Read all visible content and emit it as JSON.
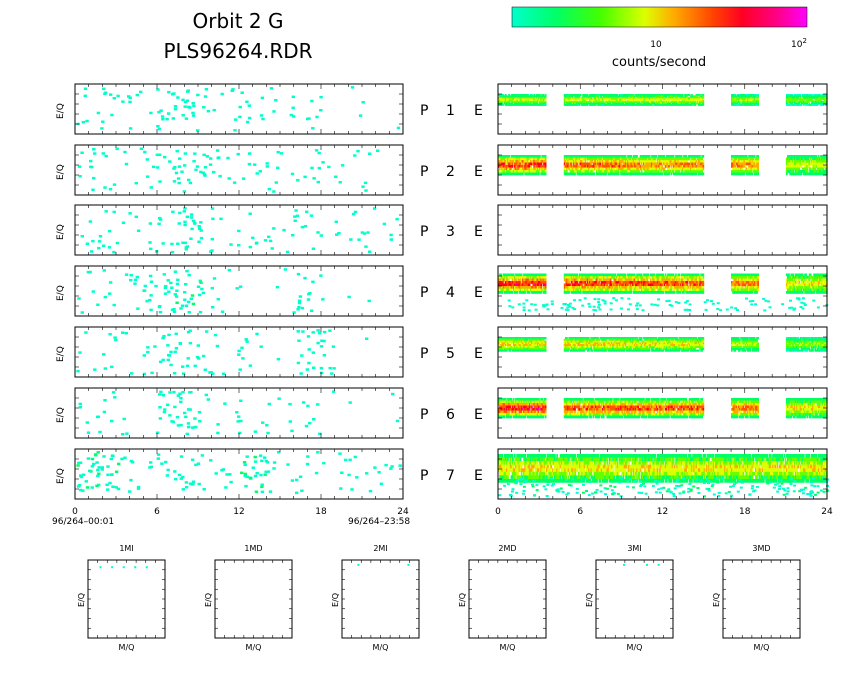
{
  "header": {
    "title_line1": "Orbit 2 G",
    "title_line2": "PLS96264.RDR"
  },
  "colorbar": {
    "label": "counts/second",
    "tick_10": "10",
    "tick_100": "10",
    "tick_100_exp": "2",
    "colors": [
      "#00ffcc",
      "#00ff66",
      "#66ff00",
      "#ddff00",
      "#ffaa00",
      "#ff5500",
      "#ff0022",
      "#ff00aa",
      "#ff00ff"
    ]
  },
  "left_panels": {
    "ylabel": "E/Q",
    "xticks": [
      "0",
      "6",
      "12",
      "18",
      "24"
    ],
    "start_label": "96/264–00:01",
    "end_label": "96/264–23:58"
  },
  "right_panels": {
    "xticks": [
      "0",
      "6",
      "12",
      "18",
      "24"
    ]
  },
  "row_labels": [
    {
      "p": "P",
      "n": "1",
      "e": "E"
    },
    {
      "p": "P",
      "n": "2",
      "e": "E"
    },
    {
      "p": "P",
      "n": "3",
      "e": "E"
    },
    {
      "p": "P",
      "n": "4",
      "e": "E"
    },
    {
      "p": "P",
      "n": "5",
      "e": "E"
    },
    {
      "p": "P",
      "n": "6",
      "e": "E"
    },
    {
      "p": "P",
      "n": "7",
      "e": "E"
    }
  ],
  "small_panels": {
    "ylabel": "E/Q",
    "xlabel": "M/Q",
    "titles": [
      "1MI",
      "1MD",
      "2MI",
      "2MD",
      "3MI",
      "3MD"
    ]
  },
  "chart_data": {
    "type": "heatmap",
    "x_range_hours": [
      0,
      24
    ],
    "color_scale": "log counts/second, 1 to 100",
    "left_activity": [
      {
        "row": 1,
        "x": [
          1,
          3,
          5,
          7,
          8,
          9,
          11,
          13,
          15,
          17
        ],
        "level": [
          0.15,
          0.12,
          0.1,
          0.15,
          0.2,
          0.15,
          0.1,
          0.1,
          0.1,
          0.1
        ]
      },
      {
        "row": 2,
        "x": [
          1,
          2,
          5,
          7,
          8,
          9,
          11,
          13,
          15,
          17,
          20,
          22
        ],
        "level": [
          0.15,
          0.12,
          0.1,
          0.15,
          0.2,
          0.15,
          0.1,
          0.1,
          0.1,
          0.1,
          0.08,
          0.08
        ]
      },
      {
        "row": 3,
        "x": [
          1,
          2,
          5,
          7,
          8,
          9,
          11,
          13,
          15,
          17,
          20,
          22
        ],
        "level": [
          0.15,
          0.12,
          0.1,
          0.15,
          0.25,
          0.15,
          0.1,
          0.1,
          0.1,
          0.1,
          0.08,
          0.08
        ]
      },
      {
        "row": 4,
        "x": [
          1,
          3,
          5,
          6,
          7,
          8,
          9,
          11,
          17
        ],
        "level": [
          0.12,
          0.08,
          0.08,
          0.2,
          0.15,
          0.3,
          0.12,
          0.08,
          0.2
        ]
      },
      {
        "row": 5,
        "x": [
          1,
          3,
          6,
          7,
          8,
          9,
          11,
          13,
          17,
          18
        ],
        "level": [
          0.1,
          0.08,
          0.1,
          0.15,
          0.2,
          0.12,
          0.08,
          0.08,
          0.15,
          0.25
        ]
      },
      {
        "row": 6,
        "x": [
          1,
          3,
          6,
          7,
          8,
          9,
          11,
          13,
          15,
          17
        ],
        "level": [
          0.1,
          0.08,
          0.1,
          0.15,
          0.22,
          0.12,
          0.08,
          0.1,
          0.08,
          0.08
        ]
      },
      {
        "row": 7,
        "x": [
          1,
          2,
          3,
          5,
          7,
          8,
          10,
          13,
          14,
          17,
          20,
          22
        ],
        "level": [
          0.35,
          0.3,
          0.15,
          0.1,
          0.15,
          0.2,
          0.1,
          0.3,
          0.25,
          0.1,
          0.15,
          0.1
        ]
      }
    ],
    "right_bands": [
      {
        "row": 1,
        "segments": [
          [
            0,
            3.5,
            0.4
          ],
          [
            4.8,
            9.5,
            0.4
          ],
          [
            9.5,
            15,
            0.45
          ],
          [
            17,
            19,
            0.35
          ],
          [
            21,
            24,
            0.3
          ]
        ],
        "band": [
          0.2,
          0.4
        ]
      },
      {
        "row": 2,
        "segments": [
          [
            0,
            3.5,
            0.8
          ],
          [
            4.8,
            9.5,
            0.72
          ],
          [
            9.5,
            15,
            0.65
          ],
          [
            17,
            19,
            0.65
          ],
          [
            21,
            24,
            0.45
          ]
        ],
        "band": [
          0.2,
          0.55
        ]
      },
      {
        "row": 3,
        "segments": [],
        "band": [
          0.3,
          0.5
        ]
      },
      {
        "row": 4,
        "segments": [
          [
            0,
            3.5,
            0.85
          ],
          [
            4.8,
            9.5,
            0.8
          ],
          [
            9.5,
            15,
            0.78
          ],
          [
            17,
            19,
            0.7
          ],
          [
            21,
            24,
            0.5
          ]
        ],
        "band": [
          0.15,
          0.5
        ]
      },
      {
        "row": 5,
        "segments": [
          [
            0,
            3.5,
            0.55
          ],
          [
            4.8,
            9.5,
            0.55
          ],
          [
            9.5,
            15,
            0.5
          ],
          [
            17,
            19,
            0.4
          ],
          [
            21,
            24,
            0.35
          ]
        ],
        "band": [
          0.2,
          0.45
        ]
      },
      {
        "row": 6,
        "segments": [
          [
            0,
            3.5,
            0.85
          ],
          [
            4.8,
            9.5,
            0.75
          ],
          [
            9.5,
            15,
            0.75
          ],
          [
            17,
            19,
            0.7
          ],
          [
            21,
            24,
            0.5
          ]
        ],
        "band": [
          0.2,
          0.55
        ]
      },
      {
        "row": 7,
        "segments": [
          [
            0,
            24,
            0.5
          ]
        ],
        "band": [
          0.1,
          0.6
        ]
      }
    ],
    "small_panel_dots": [
      {
        "panel": "1MI",
        "x": [
          0.15,
          0.3,
          0.45,
          0.6,
          0.75
        ],
        "y": [
          0.08,
          0.08,
          0.08,
          0.08,
          0.08
        ]
      },
      {
        "panel": "2MI",
        "x": [
          0.2,
          0.85
        ],
        "y": [
          0.05,
          0.05
        ]
      },
      {
        "panel": "3MI",
        "x": [
          0.35,
          0.65,
          0.8
        ],
        "y": [
          0.05,
          0.05,
          0.05
        ]
      }
    ]
  }
}
